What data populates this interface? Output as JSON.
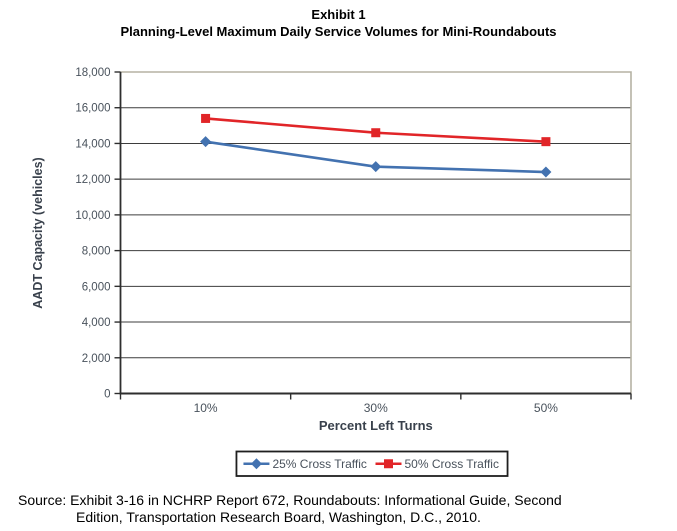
{
  "title": {
    "line1": "Exhibit 1",
    "line2": "Planning-Level Maximum Daily Service Volumes for Mini-Roundabouts"
  },
  "chart_data": {
    "type": "line",
    "categories": [
      "10%",
      "30%",
      "50%"
    ],
    "series": [
      {
        "name": "25% Cross Traffic",
        "marker": "diamond",
        "color": "#4372b0",
        "values": [
          14100,
          12700,
          12400
        ]
      },
      {
        "name": "50% Cross Traffic",
        "marker": "square",
        "color": "#e12528",
        "values": [
          15400,
          14600,
          14100
        ]
      }
    ],
    "xlabel": "Percent Left Turns",
    "ylabel": "AADT Capacity (vehicles)",
    "ylim": [
      0,
      18000
    ],
    "ytick_step": 2000,
    "y_tick_labels": [
      "0",
      "2,000",
      "4,000",
      "6,000",
      "8,000",
      "10,000",
      "12,000",
      "14,000",
      "16,000",
      "18,000"
    ],
    "grid": true,
    "legend_position": "bottom-center"
  },
  "colors": {
    "gridline": "#3d3d3d",
    "axis": "#2e2e2e",
    "plot_border": "#b5b2a4",
    "tick_text": "#49525c",
    "legend_border": "#1f1f1f"
  },
  "source": {
    "line1": "Source: Exhibit 3-16 in NCHRP Report 672, Roundabouts: Informational Guide, Second",
    "line2": "Edition, Transportation Research Board, Washington, D.C., 2010."
  }
}
